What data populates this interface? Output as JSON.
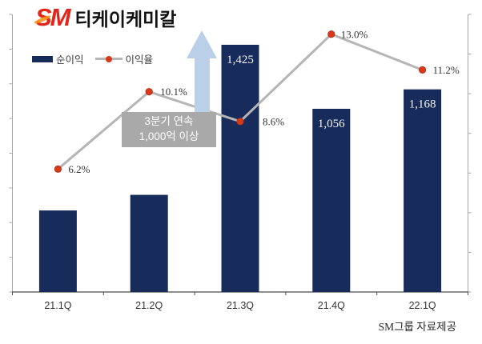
{
  "brand": {
    "logo": "SM",
    "title": "티케이케미칼"
  },
  "legend": {
    "bar_label": "순이익",
    "line_label": "이익율"
  },
  "annotation": {
    "line1": "3분기 연속",
    "line2": "1,000억 이상"
  },
  "footer": {
    "source": "SM그룹 자료제공"
  },
  "colors": {
    "bar": "#182c5c",
    "line": "#b5b5b5",
    "marker": "#d63a1b",
    "marker_edge": "#b32c10",
    "arrow": "#bad0e8",
    "annotation_bg": "#a9a9a9",
    "brand_red": "#e3261c",
    "brand_orange": "#f7941d",
    "bar_label": "#f2f2f2",
    "pct_label": "#333333",
    "axis_side": "#a6a6a6",
    "axis_bottom": "#4d4d4d",
    "x_label": "#333333"
  },
  "chart_data": {
    "type": "bar+line combo",
    "categories": [
      "21.1Q",
      "21.2Q",
      "21.3Q",
      "21.4Q",
      "22.1Q"
    ],
    "series": [
      {
        "name": "순이익",
        "type": "bar",
        "axis": "left",
        "values": [
          470,
          560,
          1425,
          1056,
          1168
        ],
        "labels": [
          null,
          null,
          "1,425",
          "1,056",
          "1,168"
        ],
        "note": "first two bars unlabeled in source; values estimated from axis scale"
      },
      {
        "name": "이익율",
        "type": "line",
        "axis": "right",
        "values": [
          6.2,
          10.1,
          8.6,
          13.0,
          11.2
        ],
        "labels": [
          "6.2%",
          "10.1%",
          "8.6%",
          "13.0%",
          "11.2%"
        ]
      }
    ],
    "left_axis": {
      "min": 0,
      "max": 1600,
      "step": 200,
      "tick_labels_visible": false
    },
    "right_axis": {
      "min": 0,
      "max": 14,
      "step": 2,
      "tick_labels_visible": false
    },
    "grid": false,
    "legend_position": "top-left"
  }
}
